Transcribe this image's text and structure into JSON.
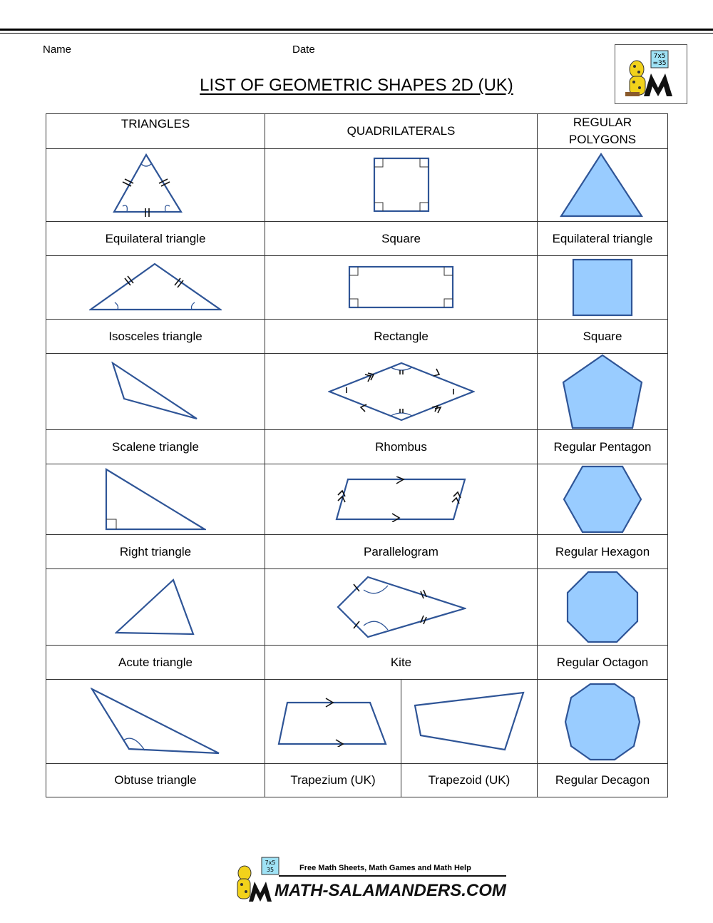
{
  "header": {
    "name_label": "Name",
    "date_label": "Date",
    "title": "LIST OF GEOMETRIC SHAPES 2D (UK)"
  },
  "logo": {
    "text_line1": "7x5",
    "text_line2": "=35"
  },
  "columns": {
    "triangles": "TRIANGLES",
    "quadrilaterals": "QUADRILATERALS",
    "regular_polygons": "REGULAR POLYGONS"
  },
  "rows": [
    {
      "triangle": "Equilateral triangle",
      "quad": "Square",
      "polygon": "Equilateral triangle"
    },
    {
      "triangle": "Isosceles triangle",
      "quad": "Rectangle",
      "polygon": "Square"
    },
    {
      "triangle": "Scalene triangle",
      "quad": "Rhombus",
      "polygon": "Regular Pentagon"
    },
    {
      "triangle": "Right triangle",
      "quad": "Parallelogram",
      "polygon": "Regular Hexagon"
    },
    {
      "triangle": "Acute triangle",
      "quad": "Kite",
      "polygon": "Regular Octagon"
    },
    {
      "triangle": "Obtuse triangle",
      "quad_a": "Trapezium (UK)",
      "quad_b": "Trapezoid (UK)",
      "polygon": "Regular Decagon"
    }
  ],
  "footer": {
    "tagline": "Free Math Sheets, Math Games and Math Help",
    "site": "MATH-SALAMANDERS.COM",
    "badge1": "7x5",
    "badge2": "35"
  },
  "colors": {
    "stroke": "#2f5597",
    "fill": "#99ccff"
  }
}
